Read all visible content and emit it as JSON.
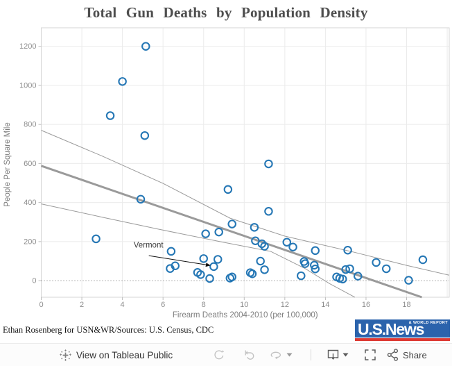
{
  "chart": {
    "title": "Total Gun Deaths by Population Density",
    "credit": "Ethan Rosenberg for USN&WR/Sources: U.S. Census, CDC"
  },
  "logo": {
    "main": "U.S.News",
    "sub": "& WORLD REPORT"
  },
  "toolbar": {
    "view_label": "View on Tableau Public",
    "share_label": "Share",
    "icons": [
      "tableau-logo",
      "redo",
      "revert",
      "refresh",
      "caret",
      "download",
      "fullscreen",
      "share"
    ]
  },
  "chart_data": {
    "type": "scatter",
    "title": "Total Gun Deaths by Population Density",
    "xlabel": "Firearm Deaths 2004-2010 (per 100,000)",
    "ylabel": "People Per Square Mile",
    "xlim": [
      0,
      20.1
    ],
    "ylim": [
      -85,
      1295
    ],
    "xticks": [
      0,
      2,
      4,
      6,
      8,
      10,
      12,
      14,
      16,
      18
    ],
    "xgrid": [
      2,
      4,
      6,
      8,
      10,
      12,
      14,
      16,
      18,
      20
    ],
    "yticks": [
      0,
      200,
      400,
      600,
      800,
      1000,
      1200
    ],
    "ygrid": [
      200,
      400,
      600,
      800,
      1000,
      1200
    ],
    "zero_line_y": 0,
    "grid": true,
    "marker": {
      "shape": "open-circle",
      "color": "#2577b5",
      "radius": 5.2,
      "stroke_width": 2.1
    },
    "line_color": "#9a9a9a",
    "points": [
      [
        5.15,
        1200
      ],
      [
        4.0,
        1020
      ],
      [
        3.4,
        845
      ],
      [
        5.1,
        743
      ],
      [
        11.2,
        598
      ],
      [
        9.2,
        467
      ],
      [
        4.9,
        417
      ],
      [
        11.2,
        355
      ],
      [
        9.4,
        290
      ],
      [
        10.5,
        273
      ],
      [
        8.75,
        249
      ],
      [
        8.1,
        240
      ],
      [
        2.7,
        214
      ],
      [
        10.55,
        204
      ],
      [
        10.87,
        189
      ],
      [
        11.0,
        176
      ],
      [
        12.1,
        197
      ],
      [
        12.4,
        172
      ],
      [
        13.5,
        154
      ],
      [
        15.1,
        156
      ],
      [
        6.4,
        150
      ],
      [
        8.0,
        113
      ],
      [
        8.7,
        109
      ],
      [
        10.8,
        100
      ],
      [
        12.95,
        98
      ],
      [
        13.0,
        87
      ],
      [
        16.5,
        93
      ],
      [
        18.8,
        107
      ],
      [
        8.5,
        72
      ],
      [
        6.6,
        76
      ],
      [
        6.35,
        62
      ],
      [
        13.45,
        79
      ],
      [
        13.5,
        60
      ],
      [
        11.0,
        56
      ],
      [
        10.3,
        41
      ],
      [
        10.4,
        35
      ],
      [
        15.0,
        57
      ],
      [
        15.2,
        61
      ],
      [
        17.0,
        61
      ],
      [
        7.7,
        42
      ],
      [
        7.85,
        31
      ],
      [
        15.6,
        23
      ],
      [
        9.4,
        19
      ],
      [
        12.8,
        25
      ],
      [
        14.55,
        19
      ],
      [
        14.7,
        12
      ],
      [
        14.85,
        8
      ],
      [
        8.3,
        11
      ],
      [
        9.3,
        13
      ],
      [
        18.1,
        2
      ]
    ],
    "trendline": [
      [
        0,
        588
      ],
      [
        18.75,
        -85
      ]
    ],
    "confidence_band_upper": [
      [
        0,
        770
      ],
      [
        3,
        638
      ],
      [
        6,
        498
      ],
      [
        9.3,
        320
      ],
      [
        12,
        228
      ],
      [
        15.4,
        146
      ],
      [
        18,
        78
      ],
      [
        20.1,
        28
      ]
    ],
    "confidence_band_lower": [
      [
        0,
        393
      ],
      [
        3,
        325
      ],
      [
        5.8,
        263
      ],
      [
        9,
        196
      ],
      [
        11.3,
        150
      ],
      [
        13,
        62
      ],
      [
        14.2,
        -15
      ],
      [
        15.45,
        -85
      ]
    ],
    "annotation": {
      "label": "Vermont",
      "text_x": 4.55,
      "text_y": 180,
      "arrow": [
        [
          5.3,
          128
        ],
        [
          8.32,
          78
        ]
      ]
    }
  }
}
